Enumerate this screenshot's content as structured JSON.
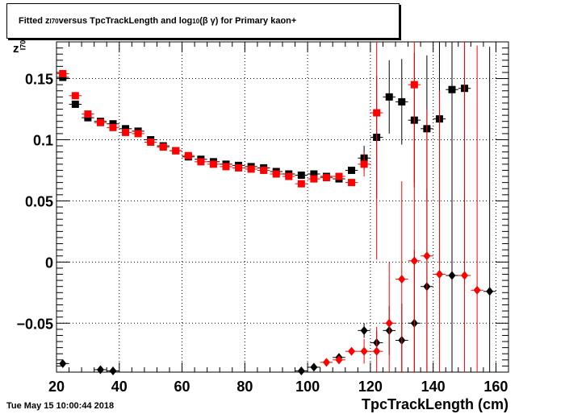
{
  "title": {
    "part1": "Fitted  z",
    "sub1": "I70",
    "part2": "  versus TpcTrackLength and log",
    "sub2": "10",
    "part3": " (β γ) for Primary kaon+"
  },
  "datestamp": "Tue May 15 10:00:44 2018",
  "chart_data": {
    "type": "scatter",
    "xlabel": "TpcTrackLength (cm)",
    "ylabel_main": "z",
    "ylabel_sub": "I70",
    "xlim": [
      20,
      164
    ],
    "ylim": [
      -0.09,
      0.18
    ],
    "x_ticks": [
      20,
      40,
      60,
      80,
      100,
      120,
      140,
      160
    ],
    "y_ticks": [
      -0.05,
      0,
      0.05,
      0.1,
      0.15
    ],
    "y_tick_labels": [
      "−0.05",
      "0",
      "0.05",
      "0.1",
      "0.15"
    ],
    "grid": true,
    "series": [
      {
        "marker": "square",
        "color": "#000000",
        "points": [
          {
            "x": 22,
            "y": 0.151
          },
          {
            "x": 26,
            "y": 0.129
          },
          {
            "x": 30,
            "y": 0.118
          },
          {
            "x": 34,
            "y": 0.115
          },
          {
            "x": 38,
            "y": 0.113
          },
          {
            "x": 42,
            "y": 0.109
          },
          {
            "x": 46,
            "y": 0.107
          },
          {
            "x": 50,
            "y": 0.1
          },
          {
            "x": 54,
            "y": 0.095
          },
          {
            "x": 58,
            "y": 0.091
          },
          {
            "x": 62,
            "y": 0.086
          },
          {
            "x": 66,
            "y": 0.084
          },
          {
            "x": 70,
            "y": 0.082
          },
          {
            "x": 74,
            "y": 0.08
          },
          {
            "x": 78,
            "y": 0.079
          },
          {
            "x": 82,
            "y": 0.078
          },
          {
            "x": 86,
            "y": 0.077
          },
          {
            "x": 90,
            "y": 0.074
          },
          {
            "x": 94,
            "y": 0.072
          },
          {
            "x": 98,
            "y": 0.071
          },
          {
            "x": 102,
            "y": 0.072
          },
          {
            "x": 106,
            "y": 0.07
          },
          {
            "x": 110,
            "y": 0.068
          },
          {
            "x": 114,
            "y": 0.075
          },
          {
            "x": 118,
            "y": 0.085,
            "err": 0.01
          },
          {
            "x": 122,
            "y": 0.102,
            "err": 0.05
          },
          {
            "x": 126,
            "y": 0.135,
            "err": 0.03
          },
          {
            "x": 130,
            "y": 0.131,
            "err": 0.035
          },
          {
            "x": 134,
            "y": 0.116,
            "err": 0.055
          },
          {
            "x": 138,
            "y": 0.109,
            "err": 0.06
          },
          {
            "x": 142,
            "y": 0.117,
            "err": 0.12
          },
          {
            "x": 146,
            "y": 0.141,
            "err": 0.18
          },
          {
            "x": 150,
            "y": 0.142,
            "err": 0.16
          }
        ]
      },
      {
        "marker": "square",
        "color": "#ff0000",
        "points": [
          {
            "x": 22,
            "y": 0.154
          },
          {
            "x": 26,
            "y": 0.136
          },
          {
            "x": 30,
            "y": 0.121
          },
          {
            "x": 34,
            "y": 0.114
          },
          {
            "x": 38,
            "y": 0.11
          },
          {
            "x": 42,
            "y": 0.106
          },
          {
            "x": 46,
            "y": 0.105
          },
          {
            "x": 50,
            "y": 0.098
          },
          {
            "x": 54,
            "y": 0.094
          },
          {
            "x": 58,
            "y": 0.091
          },
          {
            "x": 62,
            "y": 0.087
          },
          {
            "x": 66,
            "y": 0.082
          },
          {
            "x": 70,
            "y": 0.08
          },
          {
            "x": 74,
            "y": 0.078
          },
          {
            "x": 78,
            "y": 0.077
          },
          {
            "x": 82,
            "y": 0.076
          },
          {
            "x": 86,
            "y": 0.075
          },
          {
            "x": 90,
            "y": 0.072
          },
          {
            "x": 94,
            "y": 0.07
          },
          {
            "x": 98,
            "y": 0.064
          },
          {
            "x": 102,
            "y": 0.068
          },
          {
            "x": 106,
            "y": 0.069
          },
          {
            "x": 110,
            "y": 0.07
          },
          {
            "x": 114,
            "y": 0.065
          },
          {
            "x": 118,
            "y": 0.08,
            "err": 0.01
          },
          {
            "x": 122,
            "y": 0.122,
            "err": 0.12
          },
          {
            "x": 134,
            "y": 0.145,
            "err": 0.08
          }
        ]
      },
      {
        "marker": "diamond",
        "color": "#000000",
        "points": [
          {
            "x": 22,
            "y": -0.083
          },
          {
            "x": 34,
            "y": -0.088
          },
          {
            "x": 38,
            "y": -0.089
          },
          {
            "x": 98,
            "y": -0.089
          },
          {
            "x": 102,
            "y": -0.086
          },
          {
            "x": 110,
            "y": -0.078
          },
          {
            "x": 118,
            "y": -0.056,
            "err": 0.006
          },
          {
            "x": 122,
            "y": -0.066,
            "err": 0.01
          },
          {
            "x": 126,
            "y": -0.056,
            "err": 0.02
          },
          {
            "x": 130,
            "y": -0.064,
            "err": 0.03
          },
          {
            "x": 134,
            "y": -0.05,
            "err": 0.06
          },
          {
            "x": 138,
            "y": -0.02,
            "err": 0.08
          },
          {
            "x": 146,
            "y": -0.011,
            "err": 0.1
          },
          {
            "x": 158,
            "y": -0.024,
            "err": 0.2
          }
        ]
      },
      {
        "marker": "diamond",
        "color": "#ff0000",
        "points": [
          {
            "x": 106,
            "y": -0.082
          },
          {
            "x": 110,
            "y": -0.08
          },
          {
            "x": 114,
            "y": -0.073
          },
          {
            "x": 118,
            "y": -0.073,
            "err": 0.01
          },
          {
            "x": 122,
            "y": -0.073,
            "err": 0.02
          },
          {
            "x": 126,
            "y": -0.05,
            "err": 0.05
          },
          {
            "x": 130,
            "y": -0.014,
            "err": 0.08
          },
          {
            "x": 134,
            "y": 0.001,
            "err": 0.1
          },
          {
            "x": 138,
            "y": 0.005,
            "err": 0.12
          },
          {
            "x": 142,
            "y": -0.01,
            "err": 0.15
          },
          {
            "x": 150,
            "y": -0.011,
            "err": 0.2
          },
          {
            "x": 154,
            "y": -0.023,
            "err": 0.2
          }
        ]
      }
    ]
  }
}
